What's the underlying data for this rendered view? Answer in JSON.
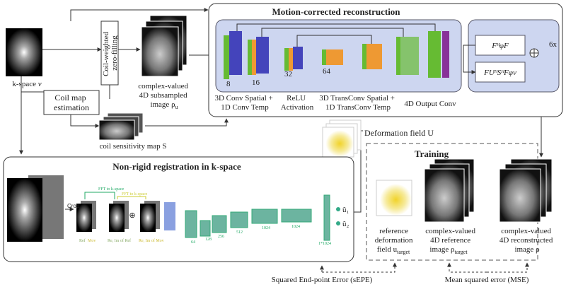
{
  "kspace": {
    "label": "k-space",
    "symbol": "ν"
  },
  "zero_filling": [
    "Coil-weighted",
    "zero-filling"
  ],
  "coil_map": [
    "Coil map",
    "estimation"
  ],
  "subsampled_image": {
    "lines": [
      "complex-valued",
      "4D subsampled",
      "image ρ"
    ],
    "sub": "u"
  },
  "coil_sensitivity": "coil sensitivity map S",
  "reconstruction": {
    "title": "Motion-corrected reconstruction",
    "channels": [
      8,
      16,
      32,
      64
    ],
    "conv_label": [
      "3D Conv Spatial +",
      "1D Conv Temp"
    ],
    "relu_label": [
      "ReLU",
      "Activation"
    ],
    "transconv_label": [
      "3D TransConv Spatial +",
      "1D TransConv Temp"
    ],
    "output_label": "4D Output Conv",
    "formula_top": "FᴴφF",
    "formula_bottom": "FUᴴSᴴFφν",
    "repeat": "6x"
  },
  "deformation_field": "Deformation field U",
  "training": {
    "title": "Training",
    "reference_deformation": {
      "lines": [
        "reference",
        "deformation",
        "field u"
      ],
      "sub": "target"
    },
    "reference_image": {
      "lines": [
        "complex-valued",
        "4D reference",
        "image ρ"
      ],
      "sub": "target"
    }
  },
  "reconstructed_image": {
    "lines": [
      "complex-valued",
      "4D reconstructed",
      "image ρ"
    ]
  },
  "registration": {
    "title": "Non-rigid registration in k-space",
    "fft_labels": [
      "FFT to k-space",
      "FFT to k-space"
    ],
    "crop": "Crop",
    "ref": "Ref",
    "mov": "Mov",
    "re_im_ref": "Re, Im of Ref",
    "re_im_mov": "Re, Im of Mov",
    "layer_sizes": [
      "64",
      "128",
      "256",
      "512",
      "1024",
      "1024",
      "1*1024"
    ],
    "outputs": [
      "û₁",
      "û₂"
    ]
  },
  "losses": {
    "sepe": "Squared End-point Error (sEPE)",
    "mse": "Mean squared error (MSE)"
  }
}
